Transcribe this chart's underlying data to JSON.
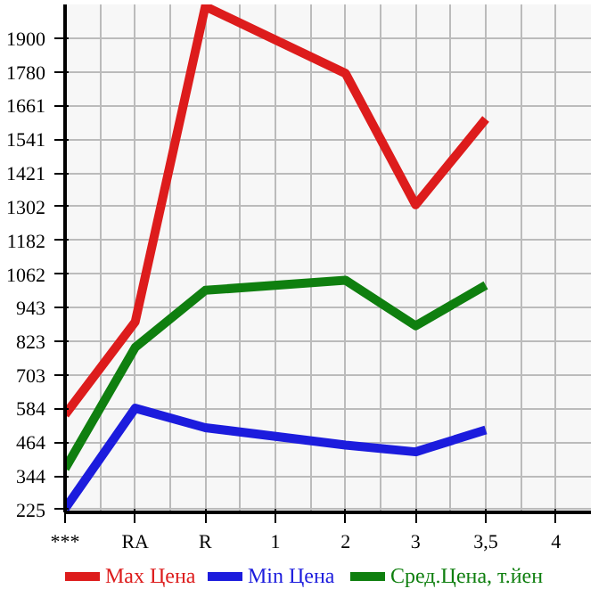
{
  "chart_data": {
    "type": "line",
    "categories": [
      "***",
      "RA",
      "R",
      "1",
      "2",
      "3",
      "3,5",
      "4"
    ],
    "series": [
      {
        "name": "Max Цена",
        "color": "#dd1c1c",
        "values": [
          562,
          892,
          2013,
          null,
          1775,
          1308,
          1613,
          null
        ]
      },
      {
        "name": "Min Цена",
        "color": "#1c1cdd",
        "values": [
          228,
          585,
          516,
          null,
          454,
          430,
          508,
          null
        ]
      },
      {
        "name": "Сред.Цена, т.йен",
        "color": "#0f7f0f",
        "values": [
          370,
          801,
          1004,
          null,
          1040,
          878,
          1022,
          null
        ]
      }
    ],
    "ylim": [
      215,
      2020
    ],
    "yticks": [
      225,
      344,
      464,
      584,
      703,
      823,
      943,
      1062,
      1182,
      1302,
      1421,
      1541,
      1661,
      1780,
      1900
    ],
    "grid": true,
    "legend": "bottom",
    "marker": "none",
    "line_style": "solid"
  }
}
